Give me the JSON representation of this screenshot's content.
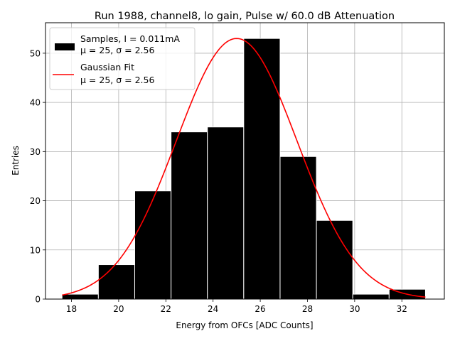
{
  "chart_data": {
    "type": "bar",
    "title": "Run 1988, channel8, lo gain, Pulse w/ 60.0 dB Attenuation",
    "xlabel": "Energy from OFCs [ADC Counts]",
    "ylabel": "Entries",
    "xlim": [
      16.9,
      33.8
    ],
    "ylim": [
      0,
      56.2
    ],
    "xticks": [
      18,
      20,
      22,
      24,
      26,
      28,
      30,
      32
    ],
    "yticks": [
      0,
      10,
      20,
      30,
      40,
      50
    ],
    "grid": true,
    "legend_position": "top-left",
    "histogram": {
      "name": "Samples",
      "bin_edges": [
        17.6,
        19.14,
        20.68,
        22.22,
        23.76,
        25.3,
        26.84,
        28.38,
        29.92,
        31.46,
        33.0
      ],
      "counts": [
        1,
        7,
        22,
        34,
        35,
        53,
        29,
        16,
        1,
        2
      ],
      "color": "#000000",
      "edge_color": "#ffffff"
    },
    "fit": {
      "name": "Gaussian Fit",
      "type": "line",
      "mu": 25,
      "sigma": 2.56,
      "amplitude": 53,
      "x_range": [
        17.6,
        33.0
      ],
      "color": "#ff0000"
    },
    "legend": [
      {
        "line1": "Samples, I = 0.011mA",
        "line2": "μ = 25, σ = 2.56",
        "marker": "patch"
      },
      {
        "line1": "Gaussian Fit",
        "line2": "μ = 25, σ = 2.56",
        "marker": "line"
      }
    ]
  }
}
